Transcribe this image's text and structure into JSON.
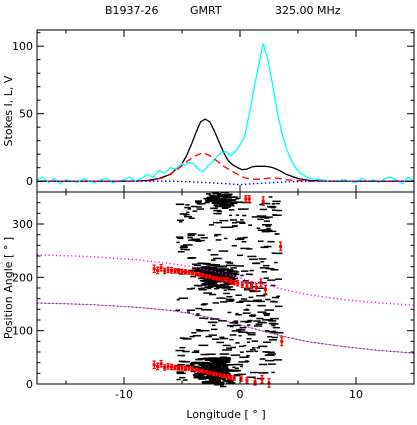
{
  "header": {
    "pulsar": "B1937-26",
    "telescope": "GMRT",
    "frequency": "325.00 MHz"
  },
  "chart_data": [
    {
      "type": "line",
      "panel": "top",
      "ylabel": "Stokes I, L, V",
      "xlim": [
        -17.5,
        15
      ],
      "ylim": [
        -8,
        112
      ],
      "y_ticks": [
        0,
        50,
        100
      ],
      "x_ticks": [
        -10,
        0,
        10
      ],
      "grid": false,
      "series": [
        {
          "color": "#000000",
          "style": "solid",
          "x": [
            -17.5,
            -14,
            -10,
            -8,
            -7,
            -6,
            -5,
            -4.6,
            -4.2,
            -3.8,
            -3.4,
            -3,
            -2.6,
            -2.2,
            -1.8,
            -1.4,
            -1,
            -0.6,
            -0.2,
            0.2,
            0.6,
            1,
            1.4,
            1.8,
            2.2,
            2.6,
            3,
            3.4,
            4,
            5,
            6,
            8,
            10,
            15
          ],
          "y": [
            0,
            0,
            0,
            0.5,
            2,
            5,
            13,
            19,
            27,
            36,
            44,
            46,
            44,
            37,
            29,
            21,
            15,
            12,
            10,
            8.5,
            9,
            10.5,
            11,
            11,
            11,
            10.5,
            9.5,
            8,
            5,
            2,
            0.5,
            0,
            0,
            0
          ]
        },
        {
          "color": "#00ffff",
          "style": "solid",
          "x": [
            -17.5,
            -17,
            -16.5,
            -16,
            -15.5,
            -15,
            -14.5,
            -14,
            -13.5,
            -13,
            -12.5,
            -12,
            -11.5,
            -11,
            -10.5,
            -10,
            -9.5,
            -9,
            -8.5,
            -8,
            -7.5,
            -7,
            -6.5,
            -6,
            -5.5,
            -5,
            -4.7,
            -4.4,
            -4,
            -3.6,
            -3.2,
            -2.8,
            -2.4,
            -2,
            -1.6,
            -1.2,
            -0.8,
            -0.4,
            0,
            0.4,
            0.8,
            1.2,
            1.6,
            2,
            2.4,
            2.8,
            3.2,
            3.6,
            4,
            4.4,
            4.8,
            5.2,
            5.6,
            6,
            7,
            8,
            9,
            10,
            10.5,
            11,
            11.5,
            12,
            12.5,
            13,
            13.5,
            14,
            14.5,
            15
          ],
          "y": [
            1,
            3,
            -1,
            2,
            -2,
            1,
            0,
            -1,
            2,
            0,
            -1,
            1,
            2,
            -1,
            0,
            1,
            3,
            0,
            2,
            5,
            3,
            8,
            6,
            10,
            9,
            13,
            12,
            14,
            13,
            9,
            7,
            11,
            14,
            18,
            21,
            22,
            19,
            22,
            27,
            33,
            50,
            68,
            86,
            102,
            90,
            72,
            52,
            36,
            24,
            16,
            10,
            6,
            4,
            2,
            1,
            0,
            1,
            -1,
            2,
            0,
            1,
            -1,
            2,
            3,
            1,
            -2,
            3,
            0
          ]
        },
        {
          "color": "#ff0000",
          "style": "dashed",
          "x": [
            -17.5,
            -12,
            -9,
            -7.5,
            -6.5,
            -5.5,
            -4.5,
            -3.8,
            -3.2,
            -2.6,
            -2,
            -1.4,
            -0.8,
            -0.2,
            0.4,
            1,
            1.6,
            2.2,
            2.8,
            3.4,
            4,
            5,
            6,
            8,
            10,
            15
          ],
          "y": [
            0,
            0,
            0,
            0.5,
            3,
            8,
            15,
            19,
            21,
            19,
            15,
            11,
            8,
            5,
            2.5,
            1.5,
            1.5,
            2,
            2.5,
            2,
            1,
            0.5,
            0,
            0,
            0,
            0
          ]
        },
        {
          "color": "#0000ff",
          "style": "dotted",
          "x": [
            -17.5,
            -10,
            -6,
            -4,
            -2,
            -1,
            0,
            1,
            2,
            3,
            4,
            6,
            10,
            15
          ],
          "y": [
            0,
            0,
            0,
            -0.5,
            -1.5,
            -2,
            -2.5,
            -2,
            -1.5,
            -1,
            -0.5,
            0,
            0,
            0
          ]
        }
      ]
    },
    {
      "type": "scatter",
      "panel": "bottom",
      "xlabel": "Longitude [ ° ]",
      "ylabel": "Position Angle [ ° ]",
      "xlim": [
        -17.5,
        15
      ],
      "ylim": [
        0,
        360
      ],
      "x_ticks": [
        -10,
        0,
        10
      ],
      "y_ticks": [
        0,
        100,
        200,
        300
      ],
      "grid": false,
      "series": [
        {
          "color": "#ff0000",
          "marker": "errorbar",
          "x": [
            -7.4,
            -7.1,
            -6.8,
            -6.5,
            -6.2,
            -5.9,
            -5.6,
            -5.3,
            -5,
            -4.7,
            -4.4,
            -4.1,
            -3.8,
            -3.5,
            -3.2,
            -2.9,
            -2.6,
            -2.3,
            -2,
            -1.7,
            -1.4,
            -1.1,
            -0.8,
            -0.5,
            -0.2,
            0.2,
            0.6,
            1,
            1.4,
            1.8,
            2.2,
            -7.4,
            -7.1,
            -6.8,
            -6.5,
            -6.2,
            -5.9,
            -5.6,
            -5.3,
            -5,
            -4.7,
            -4.4,
            -4.1,
            -3.8,
            -3.5,
            -3.2,
            -2.9,
            -2.6,
            -2.3,
            -2,
            -1.7,
            -1.4,
            -1.1,
            -0.8,
            -0.5,
            0.1,
            0.6,
            1.3,
            1.9,
            2.5,
            0.5,
            0.8,
            2,
            3.5,
            3.6
          ],
          "y": [
            216,
            213,
            218,
            212,
            214,
            213,
            212,
            212,
            211,
            210,
            209,
            208,
            206,
            205,
            204,
            202,
            201,
            199,
            198,
            197,
            196,
            195,
            192,
            190,
            189,
            186,
            184,
            185,
            181,
            190,
            177,
            36,
            33,
            38,
            31,
            33,
            32,
            31,
            30,
            30,
            29,
            29,
            28,
            27,
            25,
            24,
            22,
            21,
            19,
            18,
            17,
            15,
            14,
            12,
            11,
            10,
            7,
            4,
            9,
            2,
            347,
            347,
            343,
            258,
            80
          ],
          "err": [
            7,
            6,
            6,
            5,
            5,
            5,
            4,
            4,
            4,
            4,
            3,
            3,
            3,
            3,
            3,
            3,
            3,
            3,
            3,
            3,
            3,
            4,
            4,
            4,
            5,
            5,
            6,
            6,
            7,
            7,
            8,
            7,
            6,
            6,
            5,
            5,
            5,
            4,
            4,
            4,
            4,
            3,
            3,
            3,
            3,
            3,
            3,
            3,
            3,
            3,
            3,
            3,
            4,
            4,
            4,
            5,
            5,
            6,
            7,
            8,
            6,
            6,
            8,
            8,
            8
          ]
        },
        {
          "color": "#ff00ff",
          "style": "dotted",
          "x": [
            -17.5,
            -13,
            -9,
            -6,
            -4,
            -2,
            0,
            2,
            4,
            6,
            9,
            12,
            15
          ],
          "y": [
            242,
            239,
            233,
            226,
            219,
            210,
            199,
            187,
            176,
            167,
            158,
            152,
            148
          ]
        },
        {
          "color": "#ff00ff",
          "style": "dotted",
          "x": [
            -17.5,
            -13,
            -9,
            -6,
            -4,
            -2,
            0,
            2,
            4,
            6,
            9,
            12,
            15
          ],
          "y": [
            152,
            149,
            144,
            138,
            131,
            122,
            111,
            99,
            88,
            79,
            70,
            63,
            58
          ]
        }
      ]
    }
  ]
}
